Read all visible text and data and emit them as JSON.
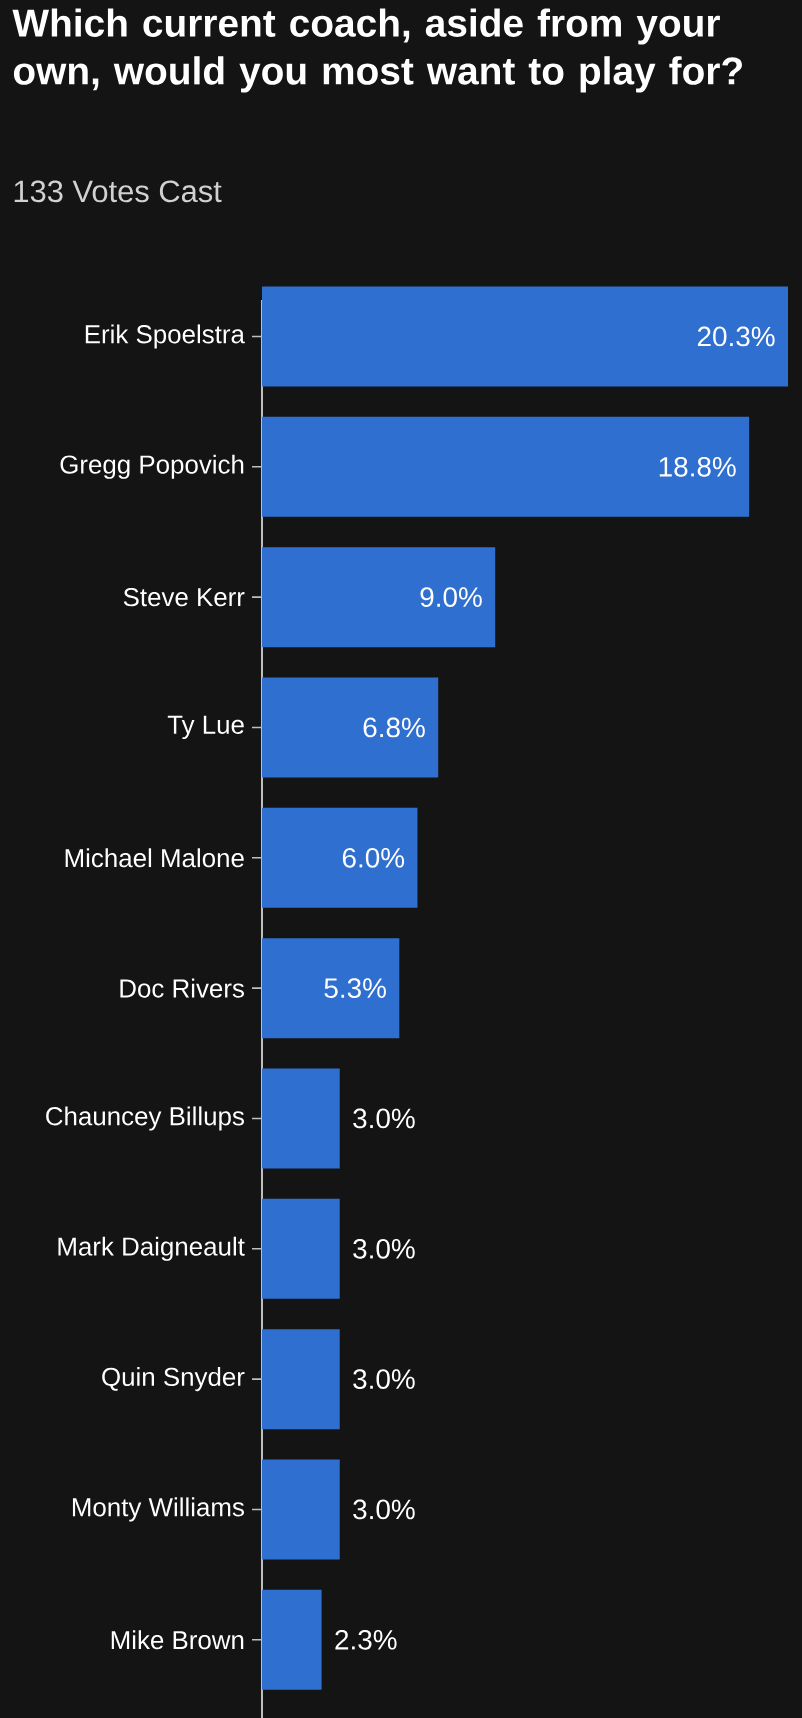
{
  "chart_data": {
    "type": "bar",
    "orientation": "horizontal",
    "title": "Which current coach, aside from your own, would you most want to play for?",
    "subtitle": "133 Votes Cast",
    "categories": [
      "Erik Spoelstra",
      "Gregg Popovich",
      "Steve Kerr",
      "Ty Lue",
      "Michael Malone",
      "Doc Rivers",
      "Chauncey Billups",
      "Mark Daigneault",
      "Quin Snyder",
      "Monty Williams",
      "Mike Brown"
    ],
    "values": [
      20.3,
      18.8,
      9.0,
      6.8,
      6.0,
      5.3,
      3.0,
      3.0,
      3.0,
      3.0,
      2.3
    ],
    "value_labels": [
      "20.3%",
      "18.8%",
      "9.0%",
      "6.8%",
      "6.0%",
      "5.3%",
      "3.0%",
      "3.0%",
      "3.0%",
      "3.0%",
      "2.3%"
    ],
    "color": "#2f6fcf",
    "tick_labels": "y"
  }
}
